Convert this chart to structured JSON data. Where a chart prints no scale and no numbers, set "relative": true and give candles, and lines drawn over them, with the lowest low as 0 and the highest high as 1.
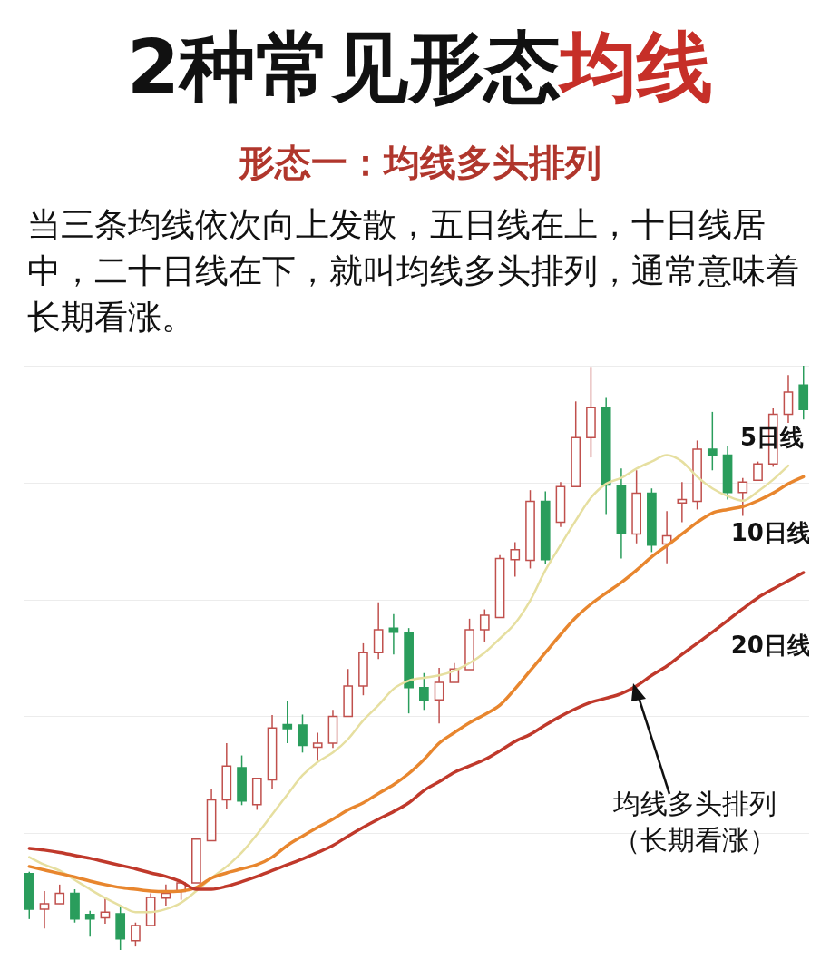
{
  "chart_data": {
    "type": "candlestick",
    "title": "2种常见形态均线",
    "subtitle": "形态一：均线多头排列",
    "annotations": [
      "当三条均线依次向上发散，五日线在上，十日线居中，二十日线在下，就叫均线多头排列，通常意味着长期看涨。",
      "均线多头排列（长期看涨）"
    ],
    "relative": true,
    "grid": "y",
    "categories": [
      null,
      null,
      null,
      null,
      null,
      null,
      null,
      null,
      null,
      null,
      null,
      null,
      null,
      null,
      null,
      null,
      null,
      null,
      null,
      null,
      null,
      null,
      null,
      null,
      null,
      null,
      null,
      null,
      null,
      null,
      null,
      null,
      null,
      null,
      null,
      null,
      null,
      null,
      null,
      null,
      null,
      null,
      null,
      null,
      null,
      null,
      null,
      null,
      null,
      null,
      null,
      null
    ],
    "ohlc": [
      [
        0.131,
        0.134,
        0.053,
        0.07
      ],
      [
        0.07,
        0.101,
        0.037,
        0.079
      ],
      [
        0.079,
        0.112,
        0.079,
        0.097
      ],
      [
        0.097,
        0.104,
        0.047,
        0.053
      ],
      [
        0.061,
        0.067,
        0.023,
        0.053
      ],
      [
        0.055,
        0.089,
        0.045,
        0.065
      ],
      [
        0.062,
        0.073,
        0,
        0.019
      ],
      [
        0.016,
        0.047,
        0.006,
        0.042
      ],
      [
        0.042,
        0.097,
        0.042,
        0.09
      ],
      [
        0.089,
        0.112,
        0.076,
        0.097
      ],
      [
        0.1,
        0.117,
        0.086,
        0.115
      ],
      [
        0.115,
        0.19,
        0.115,
        0.19
      ],
      [
        0.187,
        0.276,
        0.187,
        0.257
      ],
      [
        0.257,
        0.354,
        0.241,
        0.315
      ],
      [
        0.312,
        0.333,
        0.248,
        0.255
      ],
      [
        0.249,
        0.294,
        0.24,
        0.294
      ],
      [
        0.291,
        0.402,
        0.276,
        0.38
      ],
      [
        0.386,
        0.427,
        0.354,
        0.379
      ],
      [
        0.385,
        0.403,
        0.338,
        0.35
      ],
      [
        0.347,
        0.372,
        0.322,
        0.354
      ],
      [
        0.354,
        0.411,
        0.346,
        0.4
      ],
      [
        0.4,
        0.481,
        0.4,
        0.452
      ],
      [
        0.452,
        0.525,
        0.436,
        0.509
      ],
      [
        0.509,
        0.595,
        0.498,
        0.548
      ],
      [
        0.551,
        0.575,
        0.506,
        0.544
      ],
      [
        0.544,
        0.551,
        0.405,
        0.449
      ],
      [
        0.449,
        0.474,
        0.411,
        0.428
      ],
      [
        0.428,
        0.483,
        0.388,
        0.458
      ],
      [
        0.458,
        0.491,
        0.458,
        0.481
      ],
      [
        0.48,
        0.567,
        0.48,
        0.548
      ],
      [
        0.548,
        0.583,
        0.528,
        0.573
      ],
      [
        0.569,
        0.676,
        0.569,
        0.67
      ],
      [
        0.668,
        0.698,
        0.639,
        0.685
      ],
      [
        0.667,
        0.787,
        0.653,
        0.768
      ],
      [
        0.768,
        0.785,
        0.66,
        0.668
      ],
      [
        0.732,
        0.801,
        0.724,
        0.793
      ],
      [
        0.793,
        0.939,
        0.793,
        0.877
      ],
      [
        0.877,
        0.998,
        0.843,
        0.928
      ],
      [
        0.928,
        0.945,
        0.746,
        0.796
      ],
      [
        0.794,
        0.824,
        0.67,
        0.713
      ],
      [
        0.712,
        0.821,
        0.696,
        0.782
      ],
      [
        0.782,
        0.79,
        0.681,
        0.693
      ],
      [
        0.695,
        0.751,
        0.662,
        0.709
      ],
      [
        0.765,
        0.801,
        0.732,
        0.771
      ],
      [
        0.768,
        0.872,
        0.754,
        0.857
      ],
      [
        0.857,
        0.921,
        0.821,
        0.847
      ],
      [
        0.847,
        0.863,
        0.771,
        0.783
      ],
      [
        0.783,
        0.808,
        0.743,
        0.801
      ],
      [
        0.804,
        0.836,
        0.804,
        0.832
      ],
      [
        0.832,
        0.927,
        0.827,
        0.917
      ],
      [
        0.917,
        0.984,
        0.902,
        0.955
      ],
      [
        0.967,
        1,
        0.908,
        0.925
      ]
    ],
    "colors": [
      "#2a9d5c",
      "#c0504d",
      "#c0504d",
      "#2a9d5c",
      "#2a9d5c",
      "#c0504d",
      "#2a9d5c",
      "#c0504d",
      "#c0504d",
      "#c0504d",
      "#c0504d",
      "#c0504d",
      "#c0504d",
      "#c0504d",
      "#2a9d5c",
      "#c0504d",
      "#c0504d",
      "#2a9d5c",
      "#2a9d5c",
      "#c0504d",
      "#c0504d",
      "#c0504d",
      "#c0504d",
      "#c0504d",
      "#2a9d5c",
      "#2a9d5c",
      "#2a9d5c",
      "#c0504d",
      "#c0504d",
      "#c0504d",
      "#c0504d",
      "#c0504d",
      "#c0504d",
      "#c0504d",
      "#2a9d5c",
      "#c0504d",
      "#c0504d",
      "#c0504d",
      "#2a9d5c",
      "#2a9d5c",
      "#c0504d",
      "#2a9d5c",
      "#c0504d",
      "#c0504d",
      "#c0504d",
      "#2a9d5c",
      "#2a9d5c",
      "#c0504d",
      "#c0504d",
      "#c0504d",
      "#c0504d",
      "#2a9d5c"
    ],
    "series": [
      {
        "name": "5日线",
        "type": "line",
        "color": "#e6dfa0",
        "values": [
          0.159,
          0.146,
          0.136,
          0.12,
          0.104,
          0.089,
          0.076,
          0.065,
          0.065,
          0.07,
          0.081,
          0.101,
          0.123,
          0.143,
          0.167,
          0.198,
          0.232,
          0.266,
          0.299,
          0.322,
          0.338,
          0.361,
          0.393,
          0.419,
          0.447,
          0.461,
          0.466,
          0.47,
          0.478,
          0.491,
          0.509,
          0.533,
          0.559,
          0.598,
          0.65,
          0.693,
          0.735,
          0.774,
          0.798,
          0.808,
          0.824,
          0.836,
          0.847,
          0.836,
          0.81,
          0.79,
          0.777,
          0.769,
          0.785,
          0.805,
          0.829,
          null
        ]
      },
      {
        "name": "10日线",
        "type": "line",
        "color": "#e8862e",
        "values": [
          0.143,
          0.137,
          0.131,
          0.125,
          0.118,
          0.112,
          0.107,
          0.104,
          0.101,
          0.1,
          0.101,
          0.107,
          0.123,
          0.132,
          0.139,
          0.146,
          0.159,
          0.179,
          0.195,
          0.21,
          0.224,
          0.24,
          0.252,
          0.268,
          0.283,
          0.302,
          0.326,
          0.354,
          0.372,
          0.389,
          0.403,
          0.419,
          0.447,
          0.478,
          0.509,
          0.54,
          0.569,
          0.592,
          0.611,
          0.629,
          0.65,
          0.673,
          0.692,
          0.712,
          0.732,
          0.748,
          0.754,
          0.759,
          0.769,
          0.782,
          0.798,
          0.81
        ]
      },
      {
        "name": "20日线",
        "type": "line",
        "color": "#c0392b",
        "values": [
          0.174,
          0.171,
          0.167,
          0.162,
          0.157,
          0.151,
          0.145,
          0.139,
          0.132,
          0.126,
          0.117,
          0.104,
          0.104,
          0.109,
          0.117,
          0.126,
          0.136,
          0.146,
          0.156,
          0.167,
          0.179,
          0.195,
          0.21,
          0.224,
          0.237,
          0.252,
          0.273,
          0.288,
          0.304,
          0.315,
          0.326,
          0.341,
          0.357,
          0.369,
          0.385,
          0.4,
          0.413,
          0.424,
          0.431,
          0.439,
          0.452,
          0.47,
          0.486,
          0.506,
          0.525,
          0.544,
          0.564,
          0.584,
          0.603,
          0.618,
          0.632,
          0.646
        ]
      }
    ]
  }
}
